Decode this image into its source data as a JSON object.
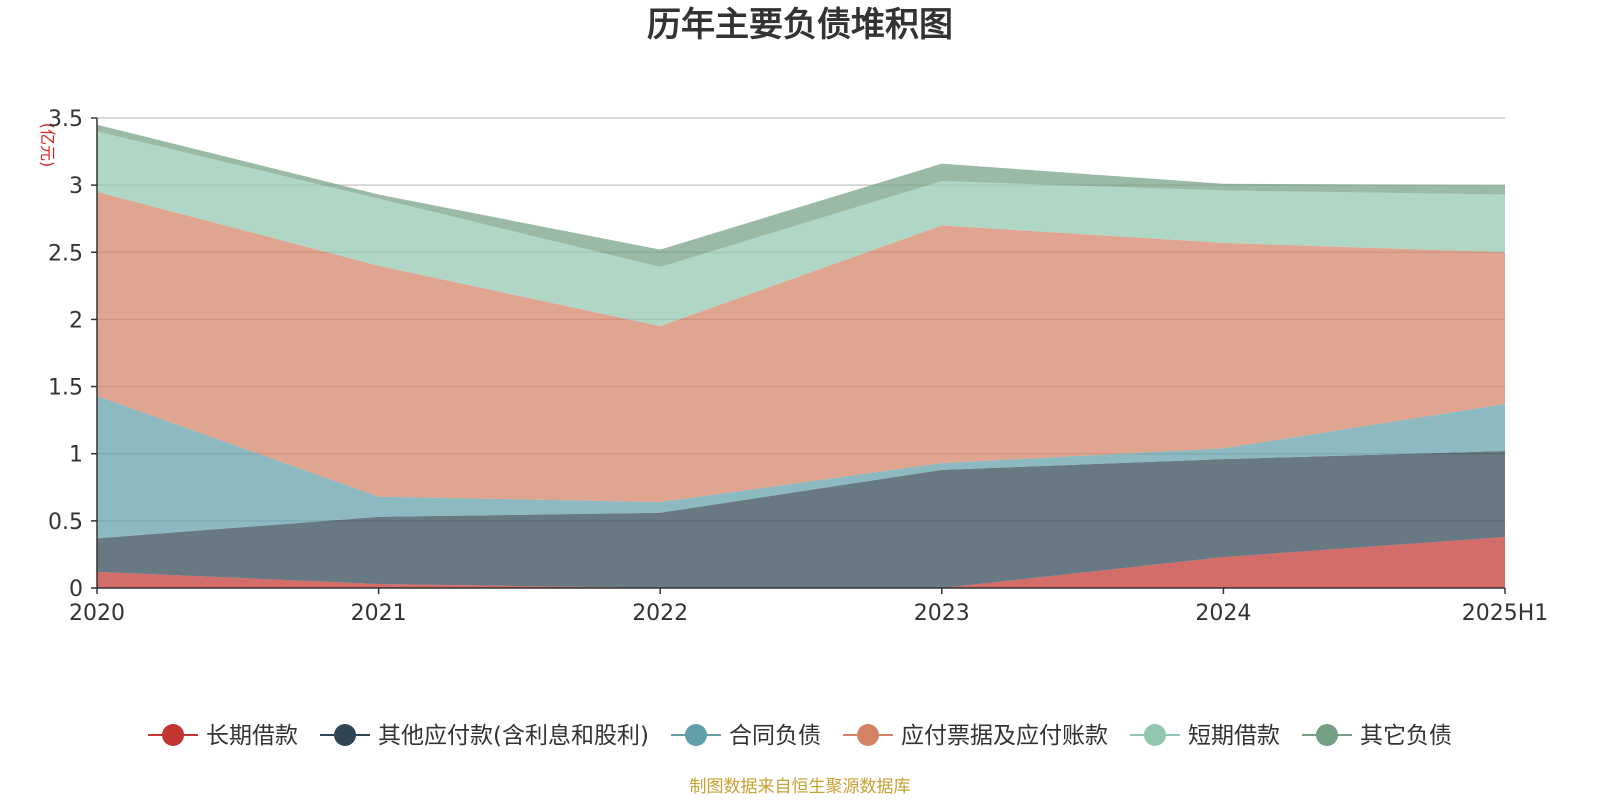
{
  "chart_data": {
    "type": "area",
    "stacked": true,
    "title": "历年主要负债堆积图",
    "ylabel": "(亿元)",
    "xlabel": "",
    "categories": [
      "2020",
      "2021",
      "2022",
      "2023",
      "2024",
      "2025H1"
    ],
    "ylim": [
      0,
      3.5
    ],
    "yticks": [
      "0",
      "0.5",
      "1",
      "1.5",
      "2",
      "2.5",
      "3",
      "3.5"
    ],
    "grid": true,
    "legend_position": "bottom",
    "series": [
      {
        "name": "长期借款",
        "color": "#c23531",
        "values": [
          0.12,
          0.03,
          0.0,
          0.0,
          0.23,
          0.38
        ]
      },
      {
        "name": "其他应付款(含利息和股利)",
        "color": "#2f4554",
        "values": [
          0.25,
          0.5,
          0.56,
          0.88,
          0.73,
          0.64
        ]
      },
      {
        "name": "合同负债",
        "color": "#61a0a8",
        "values": [
          1.06,
          0.15,
          0.08,
          0.05,
          0.08,
          0.35
        ]
      },
      {
        "name": "应付票据及应付账款",
        "color": "#d48265",
        "values": [
          1.52,
          1.72,
          1.31,
          1.77,
          1.53,
          1.13
        ]
      },
      {
        "name": "短期借款",
        "color": "#91c7ae",
        "values": [
          0.45,
          0.5,
          0.44,
          0.33,
          0.39,
          0.43
        ]
      },
      {
        "name": "其它负债",
        "color": "#749f83",
        "values": [
          0.05,
          0.03,
          0.13,
          0.13,
          0.05,
          0.07
        ]
      }
    ],
    "source": "制图数据来自恒生聚源数据库"
  }
}
